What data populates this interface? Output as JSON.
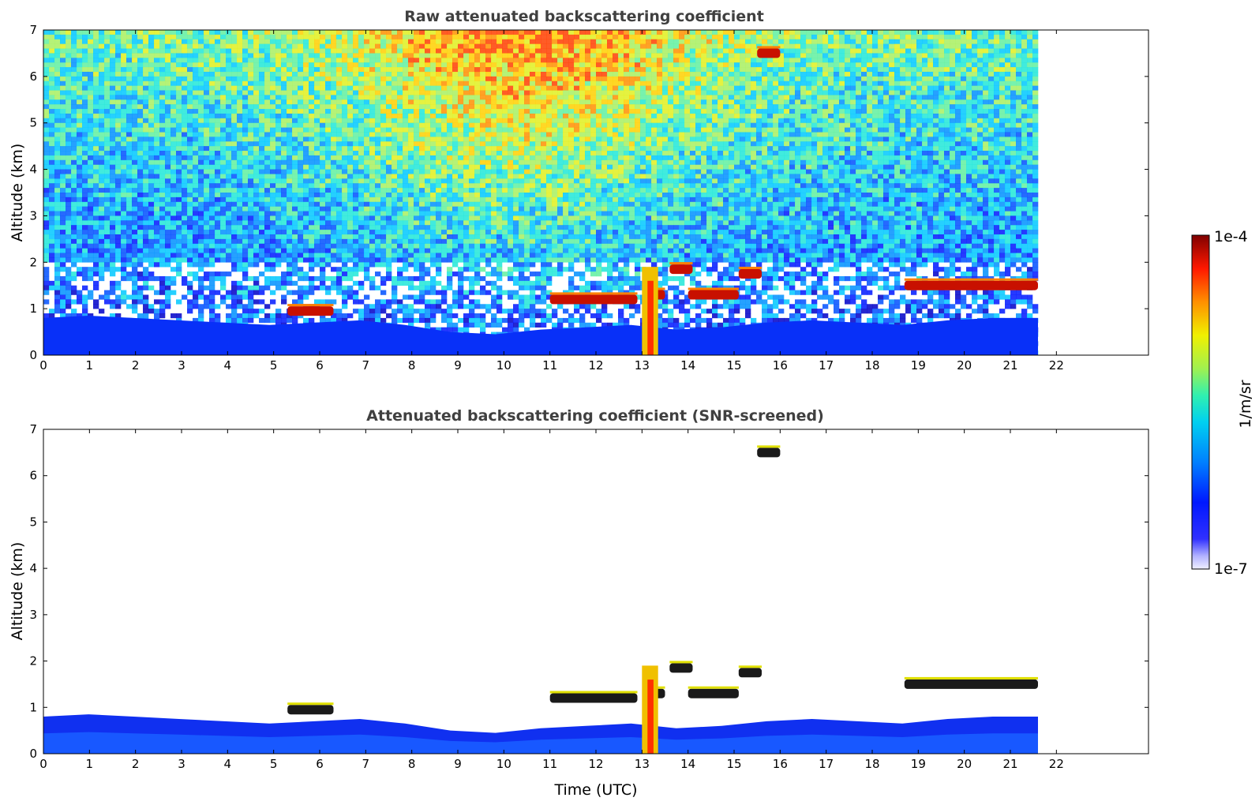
{
  "chart_data": [
    {
      "type": "heatmap",
      "title": "Raw attenuated backscattering coefficient",
      "xlabel": "",
      "ylabel": "Altitude (km)",
      "xlim": [
        0,
        24
      ],
      "ylim": [
        0,
        7
      ],
      "x_ticks": [
        0,
        1,
        2,
        3,
        4,
        5,
        6,
        7,
        8,
        9,
        10,
        11,
        12,
        13,
        14,
        15,
        16,
        17,
        18,
        19,
        20,
        21,
        22
      ],
      "y_ticks": [
        0,
        1,
        2,
        3,
        4,
        5,
        6,
        7
      ],
      "data_end_time": 21.6,
      "screened": false,
      "features": [
        {
          "kind": "boundary_layer",
          "t_start": 0,
          "t_end": 21.6,
          "top_km": [
            0.8,
            0.85,
            0.8,
            0.75,
            0.7,
            0.65,
            0.7,
            0.75,
            0.65,
            0.5,
            0.45,
            0.55,
            0.6,
            0.65,
            0.55,
            0.6,
            0.7,
            0.75,
            0.7,
            0.65,
            0.75,
            0.8,
            0.8
          ]
        },
        {
          "kind": "cloud",
          "t_start": 5.3,
          "t_end": 6.3,
          "alt_km": 0.95
        },
        {
          "kind": "cloud",
          "t_start": 11.0,
          "t_end": 12.9,
          "alt_km": 1.2
        },
        {
          "kind": "cloud",
          "t_start": 13.1,
          "t_end": 13.5,
          "alt_km": 1.3
        },
        {
          "kind": "cloud",
          "t_start": 13.6,
          "t_end": 14.1,
          "alt_km": 1.85
        },
        {
          "kind": "cloud",
          "t_start": 14.0,
          "t_end": 15.1,
          "alt_km": 1.3
        },
        {
          "kind": "cloud",
          "t_start": 15.1,
          "t_end": 15.6,
          "alt_km": 1.75
        },
        {
          "kind": "cloud",
          "t_start": 15.5,
          "t_end": 16.0,
          "alt_km": 6.5
        },
        {
          "kind": "cloud",
          "t_start": 18.7,
          "t_end": 21.6,
          "alt_km": 1.5
        }
      ]
    },
    {
      "type": "heatmap",
      "title": "Attenuated backscattering coefficient (SNR-screened)",
      "xlabel": "Time (UTC)",
      "ylabel": "Altitude (km)",
      "xlim": [
        0,
        24
      ],
      "ylim": [
        0,
        7
      ],
      "x_ticks": [
        0,
        1,
        2,
        3,
        4,
        5,
        6,
        7,
        8,
        9,
        10,
        11,
        12,
        13,
        14,
        15,
        16,
        17,
        18,
        19,
        20,
        21,
        22
      ],
      "y_ticks": [
        0,
        1,
        2,
        3,
        4,
        5,
        6,
        7
      ],
      "data_end_time": 21.6,
      "screened": true
    }
  ],
  "colorbar": {
    "label": "1/m/sr",
    "max_label": "1e-4",
    "min_label": "1e-7",
    "scale": "log",
    "range": [
      1e-07,
      0.0001
    ]
  }
}
